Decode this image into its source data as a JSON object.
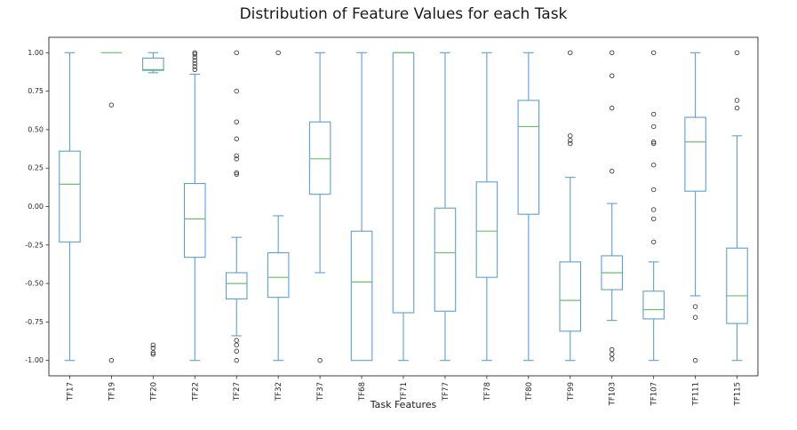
{
  "figure": {
    "title": "Distribution of Feature Values for each Task",
    "xlabel": "Task Features"
  },
  "chart_data": {
    "type": "box",
    "title": "Distribution of Feature Values for each Task",
    "xlabel": "Task Features",
    "ylabel": "",
    "ylim": [
      -1.1,
      1.1
    ],
    "grid": false,
    "legend": "none",
    "ytick_values": [
      1.0,
      0.75,
      0.5,
      0.25,
      0.0,
      -0.25,
      -0.5,
      -0.75,
      -1.0
    ],
    "ytick_labels": [
      "1.00",
      "0.75",
      "0.50",
      "0.25",
      "0.00",
      "-0.25",
      "-0.50",
      "-0.75",
      "-1.00"
    ],
    "categories": [
      "TF17",
      "TF19",
      "TF20",
      "TF22",
      "TF27",
      "TF32",
      "TF37",
      "TF68",
      "TF71",
      "TF77",
      "TF78",
      "TF80",
      "TF99",
      "TF103",
      "TF107",
      "TF111",
      "TF115"
    ],
    "boxes": [
      {
        "label": "TF17",
        "whislo": -1.0,
        "q1": -0.23,
        "med": 0.145,
        "q3": 0.36,
        "whishi": 1.0,
        "outliers": []
      },
      {
        "label": "TF19",
        "whislo": 1.0,
        "q1": 1.0,
        "med": 1.0,
        "q3": 1.0,
        "whishi": 1.0,
        "outliers": [
          0.66,
          -1.0
        ]
      },
      {
        "label": "TF20",
        "whislo": 0.87,
        "q1": 0.885,
        "med": 0.89,
        "q3": 0.965,
        "whishi": 1.0,
        "outliers": [
          -0.9,
          -0.92,
          -0.95,
          -0.96
        ]
      },
      {
        "label": "TF22",
        "whislo": -1.0,
        "q1": -0.33,
        "med": -0.08,
        "q3": 0.15,
        "whishi": 0.86,
        "outliers": [
          1.0,
          0.99,
          0.97,
          0.95,
          0.93,
          0.91,
          0.89
        ]
      },
      {
        "label": "TF27",
        "whislo": -0.84,
        "q1": -0.6,
        "med": -0.5,
        "q3": -0.43,
        "whishi": -0.2,
        "outliers": [
          1.0,
          0.75,
          0.55,
          0.44,
          0.33,
          0.31,
          0.22,
          0.21,
          -0.87,
          -0.9,
          -0.94,
          -1.0
        ]
      },
      {
        "label": "TF32",
        "whislo": -1.0,
        "q1": -0.59,
        "med": -0.46,
        "q3": -0.3,
        "whishi": -0.06,
        "outliers": [
          1.0
        ]
      },
      {
        "label": "TF37",
        "whislo": -0.43,
        "q1": 0.08,
        "med": 0.31,
        "q3": 0.55,
        "whishi": 1.0,
        "outliers": [
          -1.0
        ]
      },
      {
        "label": "TF68",
        "whislo": -1.0,
        "q1": -1.0,
        "med": -0.49,
        "q3": -0.16,
        "whishi": 1.0,
        "outliers": []
      },
      {
        "label": "TF71",
        "whislo": -1.0,
        "q1": -0.69,
        "med": 1.0,
        "q3": 1.0,
        "whishi": 1.0,
        "outliers": []
      },
      {
        "label": "TF77",
        "whislo": -1.0,
        "q1": -0.68,
        "med": -0.3,
        "q3": -0.01,
        "whishi": 1.0,
        "outliers": []
      },
      {
        "label": "TF78",
        "whislo": -1.0,
        "q1": -0.46,
        "med": -0.16,
        "q3": 0.16,
        "whishi": 1.0,
        "outliers": []
      },
      {
        "label": "TF80",
        "whislo": -1.0,
        "q1": -0.05,
        "med": 0.52,
        "q3": 0.69,
        "whishi": 1.0,
        "outliers": []
      },
      {
        "label": "TF99",
        "whislo": -1.0,
        "q1": -0.81,
        "med": -0.61,
        "q3": -0.36,
        "whishi": 0.19,
        "outliers": [
          1.0,
          0.46,
          0.43,
          0.41
        ]
      },
      {
        "label": "TF103",
        "whislo": -0.74,
        "q1": -0.54,
        "med": -0.43,
        "q3": -0.32,
        "whishi": 0.02,
        "outliers": [
          1.0,
          0.85,
          0.64,
          0.23,
          -0.93,
          -0.96,
          -0.99
        ]
      },
      {
        "label": "TF107",
        "whislo": -1.0,
        "q1": -0.73,
        "med": -0.67,
        "q3": -0.55,
        "whishi": -0.36,
        "outliers": [
          1.0,
          0.6,
          0.52,
          0.42,
          0.41,
          0.27,
          0.11,
          -0.02,
          -0.08,
          -0.23
        ]
      },
      {
        "label": "TF111",
        "whislo": -0.58,
        "q1": 0.1,
        "med": 0.42,
        "q3": 0.58,
        "whishi": 1.0,
        "outliers": [
          -0.65,
          -0.72,
          -1.0
        ]
      },
      {
        "label": "TF115",
        "whislo": -1.0,
        "q1": -0.76,
        "med": -0.58,
        "q3": -0.27,
        "whishi": 0.46,
        "outliers": [
          1.0,
          0.69,
          0.64
        ]
      }
    ],
    "colors": {
      "box": "#5e9fd4",
      "whisker": "#5e9fd4",
      "cap": "#5e9fd4",
      "median": "#6bbf6b",
      "outlier": "#404040",
      "spine": "#2a2a2a",
      "tick_text": "#262626",
      "background": "#ffffff"
    }
  }
}
